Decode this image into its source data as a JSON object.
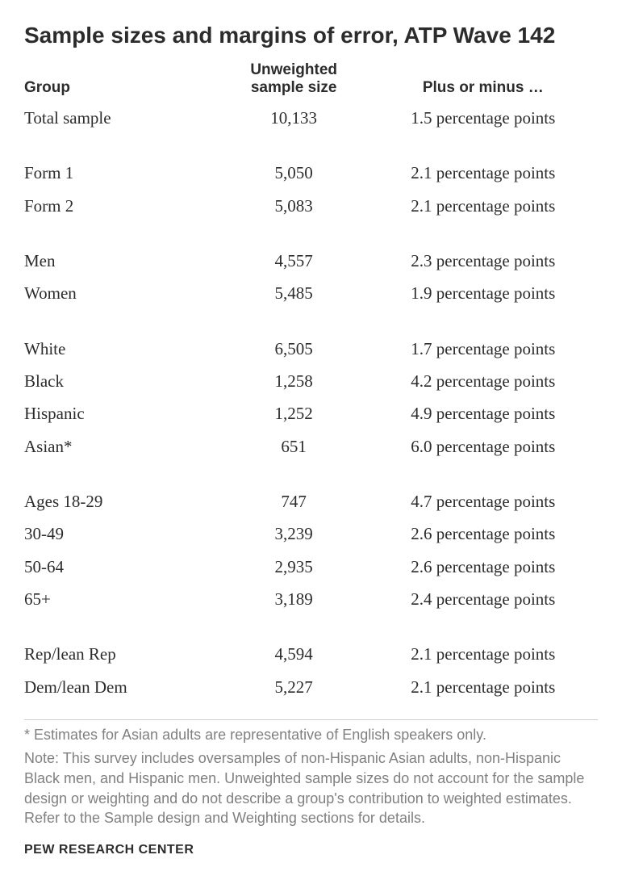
{
  "title": "Sample sizes and margins of error, ATP Wave 142",
  "columns": {
    "group": "Group",
    "size_line1": "Unweighted",
    "size_line2": "sample size",
    "moe": "Plus or minus …"
  },
  "groups": [
    [
      {
        "label": "Total sample",
        "size": "10,133",
        "moe": "1.5 percentage points"
      }
    ],
    [
      {
        "label": "Form 1",
        "size": "5,050",
        "moe": "2.1 percentage points"
      },
      {
        "label": "Form 2",
        "size": "5,083",
        "moe": "2.1 percentage points"
      }
    ],
    [
      {
        "label": "Men",
        "size": "4,557",
        "moe": "2.3 percentage points"
      },
      {
        "label": "Women",
        "size": "5,485",
        "moe": "1.9 percentage points"
      }
    ],
    [
      {
        "label": "White",
        "size": "6,505",
        "moe": "1.7 percentage points"
      },
      {
        "label": "Black",
        "size": "1,258",
        "moe": "4.2 percentage points"
      },
      {
        "label": "Hispanic",
        "size": "1,252",
        "moe": "4.9 percentage points"
      },
      {
        "label": "Asian*",
        "size": "651",
        "moe": "6.0 percentage points"
      }
    ],
    [
      {
        "label": "Ages 18-29",
        "size": "747",
        "moe": "4.7 percentage points"
      },
      {
        "label": "30-49",
        "size": "3,239",
        "moe": "2.6 percentage points"
      },
      {
        "label": "50-64",
        "size": "2,935",
        "moe": "2.6 percentage points"
      },
      {
        "label": "65+",
        "size": "3,189",
        "moe": "2.4 percentage points"
      }
    ],
    [
      {
        "label": "Rep/lean Rep",
        "size": "4,594",
        "moe": "2.1 percentage points"
      },
      {
        "label": "Dem/lean Dem",
        "size": "5,227",
        "moe": "2.1 percentage points"
      }
    ]
  ],
  "footnotes": [
    "* Estimates for Asian adults are representative of English speakers only.",
    "Note: This survey includes oversamples of non-Hispanic Asian adults, non-Hispanic Black men, and Hispanic men. Unweighted sample sizes do not account for the sample design or weighting and do not describe a group's contribution to weighted estimates. Refer to the Sample design and Weighting sections for details."
  ],
  "source": "PEW RESEARCH CENTER"
}
